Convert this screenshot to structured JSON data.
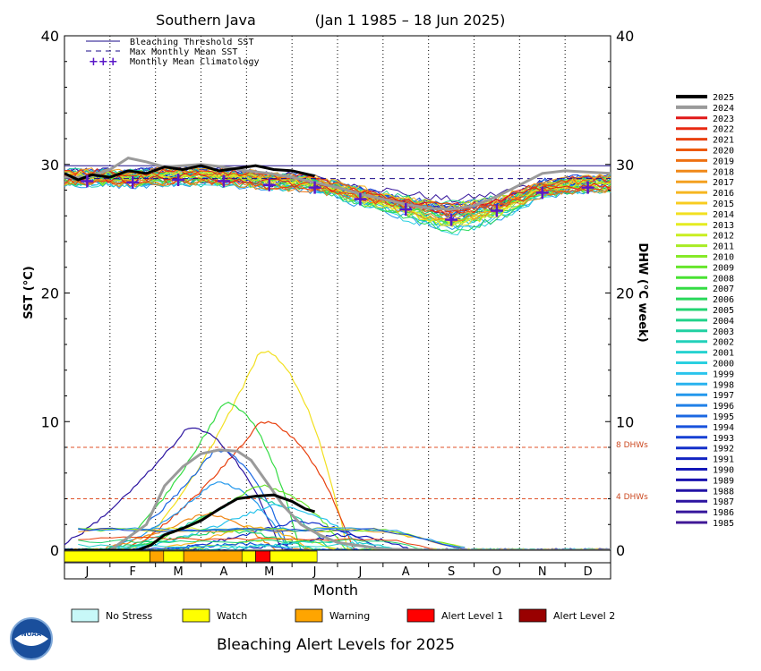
{
  "chart_data": {
    "type": "line",
    "title": "Southern Java",
    "date_range": "(Jan 1 1985 – 18 Jun 2025)",
    "y_left_label": "SST (°C)",
    "y_right_label": "DHW (°C week)",
    "xlabel": "Month",
    "ylim": [
      0,
      40
    ],
    "yticks": [
      "0",
      "10",
      "20",
      "30",
      "40"
    ],
    "months": [
      "J",
      "F",
      "M",
      "A",
      "M",
      "J",
      "J",
      "A",
      "S",
      "O",
      "N",
      "D"
    ],
    "grid": "dotted vertical month dividers",
    "legend_top": [
      {
        "label": "Bleaching Threshold SST",
        "style": "solid",
        "color": "#1a0a8a"
      },
      {
        "label": "Max Monthly Mean SST",
        "style": "dashed",
        "color": "#1a0a8a"
      },
      {
        "label": "Monthly Mean Climatology",
        "style": "plus",
        "color": "#5a18c8"
      }
    ],
    "reference_lines": [
      {
        "label": "Bleaching Threshold SST",
        "value": 29.9
      },
      {
        "label": "Max Monthly Mean SST",
        "value": 28.9
      },
      {
        "label": "8 DHWs",
        "value": 8
      },
      {
        "label": "4 DHWs",
        "value": 4
      }
    ],
    "climatology": [
      28.7,
      28.6,
      28.8,
      28.7,
      28.4,
      28.2,
      27.3,
      26.5,
      25.7,
      26.4,
      27.8,
      28.2
    ],
    "sst_2025": {
      "x": [
        0,
        0.3,
        0.6,
        1.0,
        1.4,
        1.8,
        2.2,
        2.6,
        3.0,
        3.4,
        3.8,
        4.2,
        4.6,
        5.0,
        5.5
      ],
      "y": [
        29.3,
        28.8,
        29.2,
        29.0,
        29.5,
        29.3,
        29.8,
        29.6,
        29.9,
        29.5,
        29.7,
        29.9,
        29.6,
        29.5,
        29.1
      ]
    },
    "sst_2024": {
      "x": [
        0,
        0.5,
        1.0,
        1.4,
        1.8,
        2.2,
        2.6,
        3.0,
        3.5,
        4.0,
        4.5,
        5.0,
        5.5,
        6.0,
        6.5,
        7.0,
        7.5,
        8.0,
        8.5,
        9.0,
        9.5,
        10.0,
        10.5,
        11.0,
        12.0
      ],
      "y": [
        29.0,
        29.0,
        29.6,
        30.5,
        30.2,
        29.8,
        29.9,
        30.0,
        29.8,
        29.5,
        29.3,
        29.0,
        28.6,
        28.2,
        27.7,
        27.3,
        26.9,
        26.6,
        26.5,
        26.8,
        27.5,
        28.4,
        29.3,
        29.5,
        29.3
      ]
    },
    "dhw_2025": {
      "x": [
        0,
        0.8,
        1.6,
        1.9,
        2.2,
        2.6,
        3.0,
        3.4,
        3.8,
        4.2,
        4.6,
        5.0,
        5.3,
        5.5
      ],
      "y": [
        0,
        0,
        0,
        0.4,
        1.2,
        1.7,
        2.3,
        3.2,
        4.0,
        4.2,
        4.3,
        3.8,
        3.2,
        3.0
      ]
    },
    "dhw_2024": {
      "x": [
        0,
        1.0,
        1.8,
        2.2,
        2.6,
        3.0,
        3.4,
        3.8,
        4.1,
        4.4,
        4.8,
        5.2,
        5.6,
        6.0,
        7.0,
        8.0,
        12.0
      ],
      "y": [
        0,
        0,
        2.0,
        5.0,
        6.5,
        7.5,
        7.8,
        7.7,
        7.0,
        5.5,
        3.5,
        2.0,
        1.2,
        0.6,
        0.1,
        0,
        0
      ]
    },
    "years": [
      "2025",
      "2024",
      "2023",
      "2022",
      "2021",
      "2020",
      "2019",
      "2018",
      "2017",
      "2016",
      "2015",
      "2014",
      "2013",
      "2012",
      "2011",
      "2010",
      "2009",
      "2008",
      "2007",
      "2006",
      "2005",
      "2004",
      "2003",
      "2002",
      "2001",
      "2000",
      "1999",
      "1998",
      "1997",
      "1996",
      "1995",
      "1994",
      "1993",
      "1992",
      "1991",
      "1990",
      "1989",
      "1988",
      "1987",
      "1986",
      "1985"
    ],
    "year_colors": [
      "#000000",
      "#9a9a9a",
      "#e01818",
      "#e82a12",
      "#e8400e",
      "#ec5a0c",
      "#ee7010",
      "#f08818",
      "#f4a020",
      "#f6b620",
      "#f8cc20",
      "#f2e020",
      "#e4ec20",
      "#c8ee20",
      "#a8ec24",
      "#86ea28",
      "#66e62c",
      "#48e232",
      "#34dc44",
      "#28d85a",
      "#22d472",
      "#20d28a",
      "#20d0a2",
      "#22d0ba",
      "#26d2d0",
      "#2ad0e0",
      "#2ac4ec",
      "#28b2ee",
      "#2498ec",
      "#2080e8",
      "#1c68e2",
      "#1852dc",
      "#1640d4",
      "#1430ca",
      "#1224c2",
      "#1418b8",
      "#1a12ae",
      "#2212a6",
      "#2c14a0",
      "#36169c",
      "#401896"
    ],
    "alert_legend": [
      {
        "label": "No Stress",
        "color": "#c8f8f8"
      },
      {
        "label": "Watch",
        "color": "#ffff00"
      },
      {
        "label": "Warning",
        "color": "#ffa500"
      },
      {
        "label": "Alert Level 1",
        "color": "#ff0000"
      },
      {
        "label": "Alert Level 2",
        "color": "#990000"
      }
    ],
    "alert_bar": [
      {
        "from": 0,
        "to": 1.88,
        "level": "Watch"
      },
      {
        "from": 1.88,
        "to": 2.18,
        "level": "Warning"
      },
      {
        "from": 2.18,
        "to": 2.62,
        "level": "Watch"
      },
      {
        "from": 2.62,
        "to": 3.9,
        "level": "Warning"
      },
      {
        "from": 3.9,
        "to": 4.2,
        "level": "Watch"
      },
      {
        "from": 4.2,
        "to": 4.52,
        "level": "Alert Level 1"
      },
      {
        "from": 4.52,
        "to": 5.55,
        "level": "Watch"
      }
    ],
    "bottom_title": "Bleaching Alert Levels for 2025",
    "logo_text": "NOAA"
  }
}
